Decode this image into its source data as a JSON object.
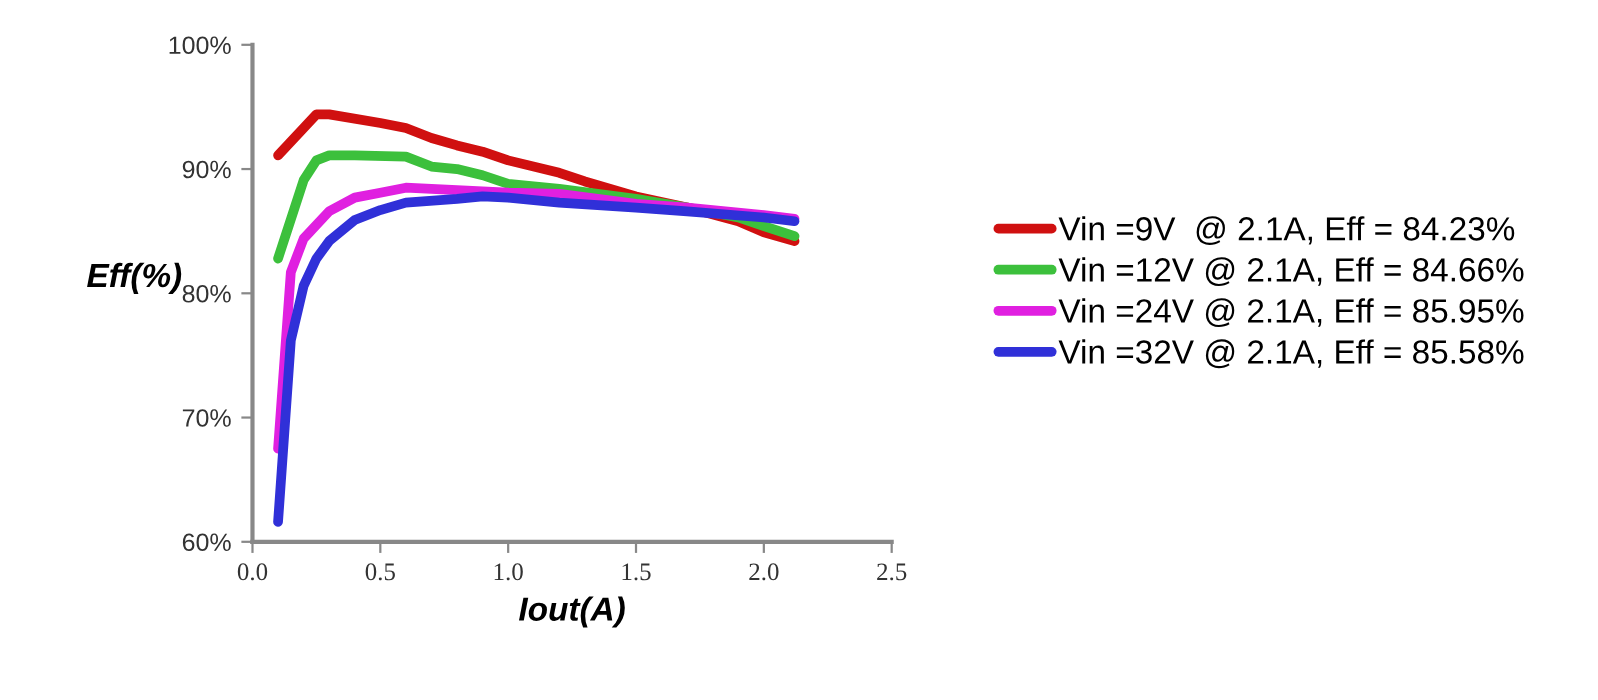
{
  "chart_data": {
    "type": "line",
    "xlabel": "Iout(A)",
    "ylabel": "Eff(%)",
    "xlim": [
      0,
      2.5
    ],
    "xticks": [
      {
        "value": 0,
        "label": "0.0"
      },
      {
        "value": 0.5,
        "label": "0.5"
      },
      {
        "value": 1,
        "label": "1.0"
      },
      {
        "value": 1.5,
        "label": "1.5"
      },
      {
        "value": 2,
        "label": "2.0"
      },
      {
        "value": 2.5,
        "label": "2.5"
      }
    ],
    "ylim": [
      60,
      100
    ],
    "yticks": [
      {
        "value": 60,
        "label": "60%"
      },
      {
        "value": 70,
        "label": "70%"
      },
      {
        "value": 80,
        "label": "80%"
      },
      {
        "value": 90,
        "label": "90%"
      },
      {
        "value": 100,
        "label": "100%"
      }
    ],
    "grid": false,
    "legend": "right",
    "marker": "none",
    "line_style": "solid",
    "series": [
      {
        "name": "Vin =9V  @ 2.1A, Eff = 84.23%",
        "color": "#d01010",
        "x": [
          0.1,
          0.25,
          0.3,
          0.5,
          0.6,
          0.7,
          0.8,
          0.9,
          1.0,
          1.2,
          1.3,
          1.5,
          1.7,
          1.9,
          2.0,
          2.12
        ],
        "values": [
          91.1,
          94.4,
          94.4,
          93.7,
          93.3,
          92.5,
          91.9,
          91.4,
          90.7,
          89.7,
          89.0,
          87.8,
          86.9,
          85.8,
          84.9,
          84.2
        ]
      },
      {
        "name": "Vin =12V @ 2.1A, Eff = 84.66%",
        "color": "#3cc03c",
        "x": [
          0.1,
          0.2,
          0.25,
          0.3,
          0.4,
          0.6,
          0.7,
          0.8,
          0.9,
          1.0,
          1.2,
          1.5,
          1.7,
          1.9,
          2.0,
          2.12
        ],
        "values": [
          82.8,
          89.1,
          90.7,
          91.1,
          91.1,
          91.0,
          90.2,
          90.0,
          89.5,
          88.8,
          88.4,
          87.6,
          86.9,
          86.1,
          85.4,
          84.6
        ]
      },
      {
        "name": "Vin =24V @ 2.1A, Eff = 85.95%",
        "color": "#e020e0",
        "x": [
          0.1,
          0.15,
          0.2,
          0.3,
          0.4,
          0.5,
          0.6,
          0.8,
          1.0,
          1.2,
          1.5,
          1.7,
          2.0,
          2.12
        ],
        "values": [
          67.5,
          81.7,
          84.4,
          86.6,
          87.7,
          88.1,
          88.5,
          88.3,
          88.1,
          88.0,
          87.2,
          86.9,
          86.3,
          86.0
        ]
      },
      {
        "name": "Vin =32V @ 2.1A, Eff = 85.58%",
        "color": "#3030d8",
        "x": [
          0.1,
          0.15,
          0.2,
          0.25,
          0.3,
          0.4,
          0.5,
          0.6,
          0.8,
          0.9,
          1.0,
          1.2,
          1.5,
          1.7,
          2.0,
          2.12
        ],
        "values": [
          61.6,
          76.2,
          80.6,
          82.8,
          84.2,
          85.9,
          86.7,
          87.3,
          87.6,
          87.8,
          87.7,
          87.3,
          86.9,
          86.6,
          86.1,
          85.8
        ]
      }
    ]
  }
}
